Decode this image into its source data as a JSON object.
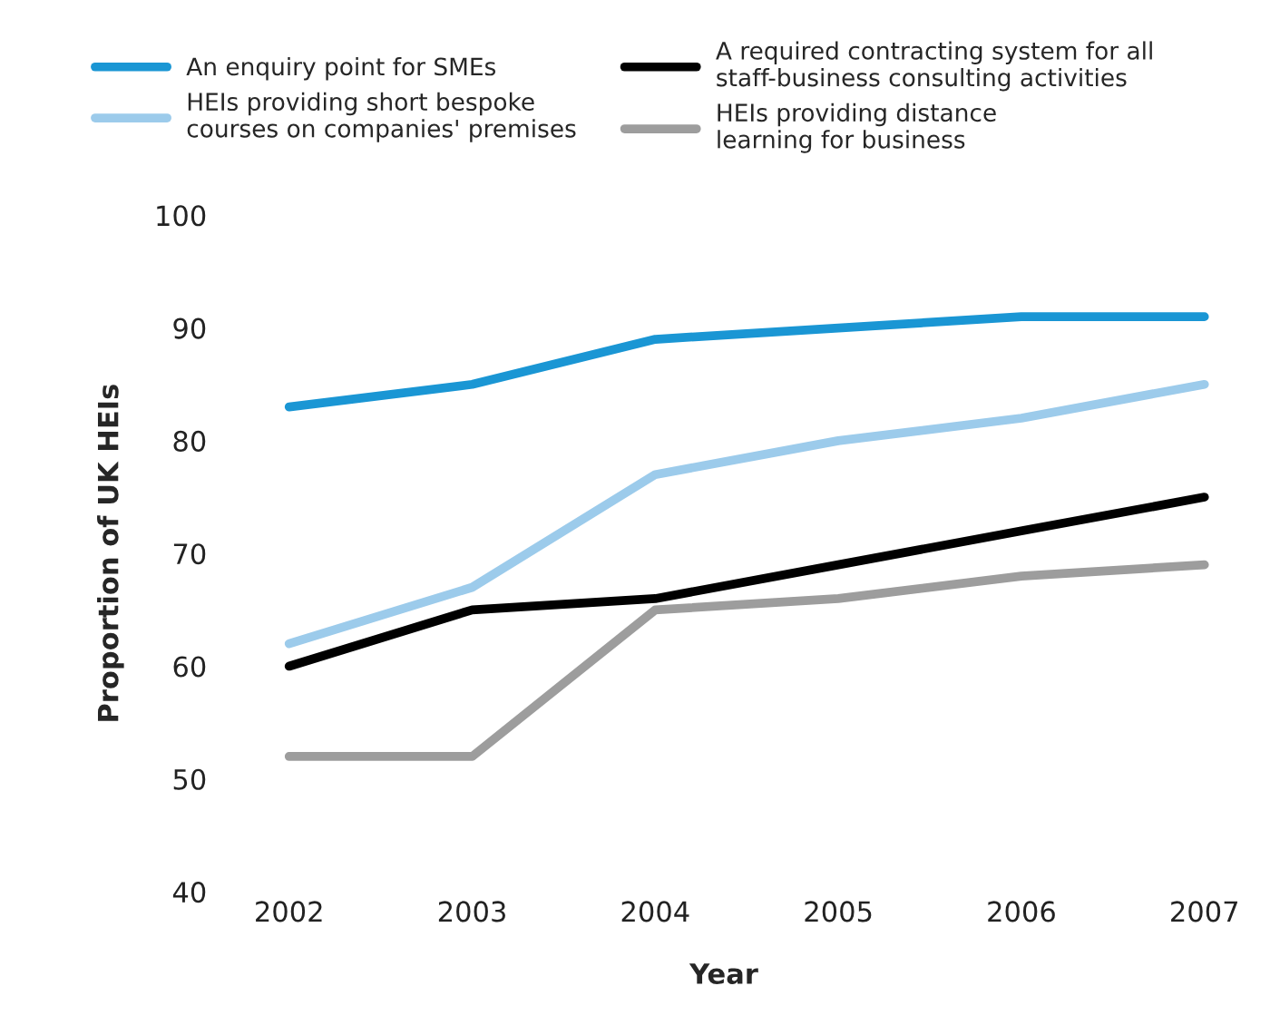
{
  "chart_data": {
    "type": "line",
    "xlabel": "Year",
    "ylabel": "Proportion of UK HEIs",
    "categories": [
      "2002",
      "2003",
      "2004",
      "2005",
      "2006",
      "2007"
    ],
    "series": [
      {
        "name": "An enquiry point for SMEs",
        "color": "#1a96d4",
        "values": [
          83,
          85,
          89,
          90,
          91,
          91
        ]
      },
      {
        "name": "A required contracting system for all\nstaff-business consulting activities",
        "color": "#000000",
        "values": [
          60,
          65,
          66,
          69,
          72,
          75
        ]
      },
      {
        "name": "HEIs providing short bespoke\ncourses on companies' premises",
        "color": "#9ccbeb",
        "values": [
          62,
          67,
          77,
          80,
          82,
          85
        ]
      },
      {
        "name": "HEIs providing distance\nlearning for business",
        "color": "#9d9d9d",
        "values": [
          52,
          52,
          65,
          66,
          68,
          69
        ]
      }
    ],
    "ylim": [
      40,
      100
    ],
    "yticks": [
      40,
      50,
      60,
      70,
      80,
      90,
      100
    ],
    "legend": "top",
    "marker": "none",
    "line_style": "solid"
  }
}
